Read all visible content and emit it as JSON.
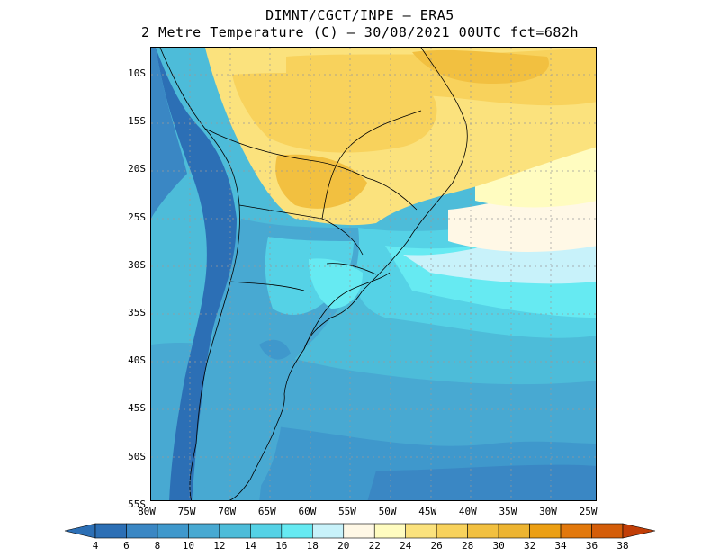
{
  "header": {
    "line1": "DIMNT/CGCT/INPE –   ERA5",
    "line2": "2 Metre Temperature (C) –   30/08/2021 00UTC fct=682h"
  },
  "map": {
    "lat_labels": [
      "10S",
      "15S",
      "20S",
      "25S",
      "30S",
      "35S",
      "40S",
      "45S",
      "50S",
      "55S"
    ],
    "lon_labels": [
      "80W",
      "75W",
      "70W",
      "65W",
      "60W",
      "55W",
      "50W",
      "45W",
      "40W",
      "35W",
      "30W",
      "25W"
    ]
  },
  "colorbar": {
    "labels": [
      "4",
      "6",
      "8",
      "10",
      "12",
      "14",
      "16",
      "18",
      "20",
      "22",
      "24",
      "26",
      "28",
      "30",
      "32",
      "34",
      "36",
      "38"
    ],
    "colors": [
      "#2c6fb5",
      "#3a87c4",
      "#3f98cc",
      "#48a9d2",
      "#4dbcd9",
      "#55d2e6",
      "#66eaf2",
      "#c8f2fa",
      "#fff8e6",
      "#fffcc0",
      "#fbe27d",
      "#f8d25c",
      "#f2c040",
      "#edb431",
      "#ec9f13",
      "#e2780c",
      "#d45d09",
      "#c13e07"
    ]
  }
}
